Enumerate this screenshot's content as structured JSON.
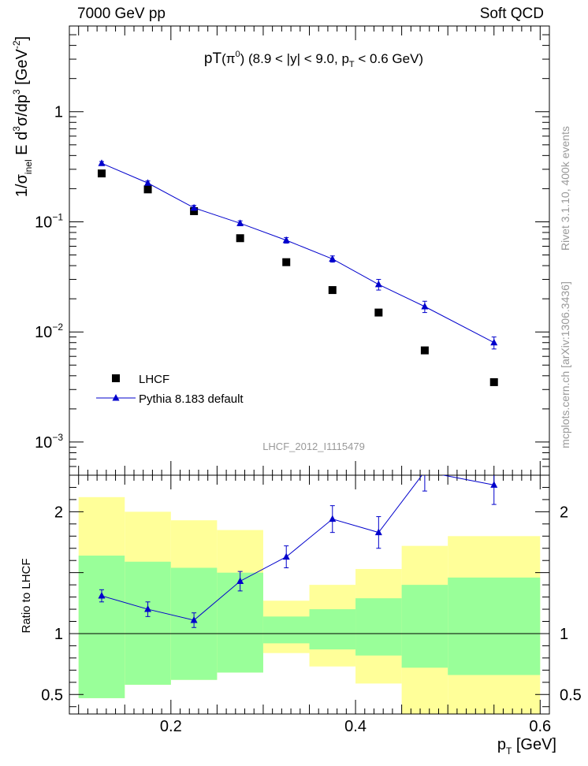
{
  "header": {
    "energy": "7000 GeV pp",
    "process": "Soft QCD"
  },
  "side_labels": {
    "rivet": "Rivet 3.1.10,  400k events",
    "site": "mcplots.cern.ch [arXiv:1306.3436]"
  },
  "colors": {
    "data": "#000000",
    "mc": "#0000cc",
    "band_inner": "#99ff99",
    "band_outer": "#ffff99",
    "watermark": "#999999"
  },
  "chart_data": [
    {
      "type": "scatter",
      "panel": "main",
      "title": "pT(π⁰) (8.9 < |y| < 9.0, pT < 0.6 GeV)",
      "title_parts": {
        "lead": "pT",
        "paren_open": "(π",
        "pi_sup": "0",
        "mid": ") (8.9 < |y| < 9.0, p",
        "sub": "T",
        "tail": " < 0.6 GeV)"
      },
      "ylabel": "1/σinel E d³σ/dp³ [GeV⁻²]",
      "ylabel_parts": {
        "a": "1/σ",
        "a_sub": "inel",
        "b": " E d",
        "b_sup": "3",
        "c": "σ/dp",
        "c_sup": "3",
        "d": " [GeV",
        "d_sup": "-2",
        "e": "]"
      },
      "y_scale": "log",
      "ylim": [
        0.0005,
        6
      ],
      "xlim": [
        0.09,
        0.61
      ],
      "yticks": [
        {
          "value": 1,
          "base": "1",
          "exp": ""
        },
        {
          "value": 0.1,
          "base": "10",
          "exp": "−1"
        },
        {
          "value": 0.01,
          "base": "10",
          "exp": "−2"
        },
        {
          "value": 0.001,
          "base": "10",
          "exp": "−3"
        }
      ],
      "watermark": "LHCF_2012_I1115479",
      "legend": {
        "position": "bottom-left",
        "entries": [
          "LHCF",
          "Pythia 8.183 default"
        ]
      },
      "series": [
        {
          "name": "LHCF",
          "marker": "square",
          "x": [
            0.125,
            0.175,
            0.225,
            0.275,
            0.325,
            0.375,
            0.425,
            0.475,
            0.55
          ],
          "y": [
            0.275,
            0.197,
            0.125,
            0.071,
            0.043,
            0.024,
            0.015,
            0.0068,
            0.0035
          ]
        },
        {
          "name": "Pythia 8.183 default",
          "marker": "triangle",
          "x": [
            0.125,
            0.175,
            0.225,
            0.275,
            0.325,
            0.375,
            0.425,
            0.475,
            0.55
          ],
          "y": [
            0.34,
            0.225,
            0.134,
            0.097,
            0.068,
            0.046,
            0.027,
            0.017,
            0.008
          ],
          "y_err": [
            0.013,
            0.01,
            0.007,
            0.005,
            0.004,
            0.003,
            0.003,
            0.002,
            0.001
          ]
        }
      ]
    },
    {
      "type": "line",
      "panel": "ratio",
      "ylabel": "Ratio to LHCF",
      "xlabel": "pT [GeV]",
      "xlabel_parts": {
        "a": "p",
        "a_sub": "T",
        "b": " [GeV]"
      },
      "xlim": [
        0.09,
        0.61
      ],
      "ylim": [
        0.34,
        2.3
      ],
      "xticks": [
        {
          "value": 0.2,
          "label": "0.2"
        },
        {
          "value": 0.4,
          "label": "0.4"
        },
        {
          "value": 0.6,
          "label": "0.6"
        }
      ],
      "yticks": [
        {
          "value": 0.5,
          "label": "0.5"
        },
        {
          "value": 1,
          "label": "1"
        },
        {
          "value": 2,
          "label": "2"
        }
      ],
      "bins": [
        {
          "lo": 0.1,
          "hi": 0.15,
          "inner": [
            0.47,
            1.64
          ],
          "outer": [
            0.47,
            2.12
          ]
        },
        {
          "lo": 0.15,
          "hi": 0.2,
          "inner": [
            0.58,
            1.59
          ],
          "outer": [
            0.58,
            2.0
          ]
        },
        {
          "lo": 0.2,
          "hi": 0.25,
          "inner": [
            0.62,
            1.54
          ],
          "outer": [
            0.62,
            1.93
          ]
        },
        {
          "lo": 0.25,
          "hi": 0.3,
          "inner": [
            0.68,
            1.5
          ],
          "outer": [
            0.68,
            1.85
          ]
        },
        {
          "lo": 0.3,
          "hi": 0.35,
          "inner": [
            0.92,
            1.14
          ],
          "outer": [
            0.84,
            1.27
          ]
        },
        {
          "lo": 0.35,
          "hi": 0.4,
          "inner": [
            0.87,
            1.2
          ],
          "outer": [
            0.73,
            1.4
          ]
        },
        {
          "lo": 0.4,
          "hi": 0.45,
          "inner": [
            0.82,
            1.29
          ],
          "outer": [
            0.59,
            1.53
          ]
        },
        {
          "lo": 0.45,
          "hi": 0.5,
          "inner": [
            0.72,
            1.4
          ],
          "outer": [
            0.34,
            1.72
          ]
        },
        {
          "lo": 0.5,
          "hi": 0.6,
          "inner": [
            0.66,
            1.46
          ],
          "outer": [
            0.34,
            1.8
          ]
        }
      ],
      "series": [
        {
          "name": "Pythia 8.183 default",
          "marker": "triangle",
          "x": [
            0.125,
            0.175,
            0.225,
            0.275,
            0.325,
            0.375,
            0.425,
            0.475,
            0.55
          ],
          "y": [
            1.31,
            1.2,
            1.11,
            1.43,
            1.63,
            1.94,
            1.83,
            2.33,
            2.22
          ],
          "y_err": [
            0.05,
            0.06,
            0.06,
            0.08,
            0.09,
            0.11,
            0.13,
            0.16,
            0.16
          ]
        }
      ]
    }
  ]
}
